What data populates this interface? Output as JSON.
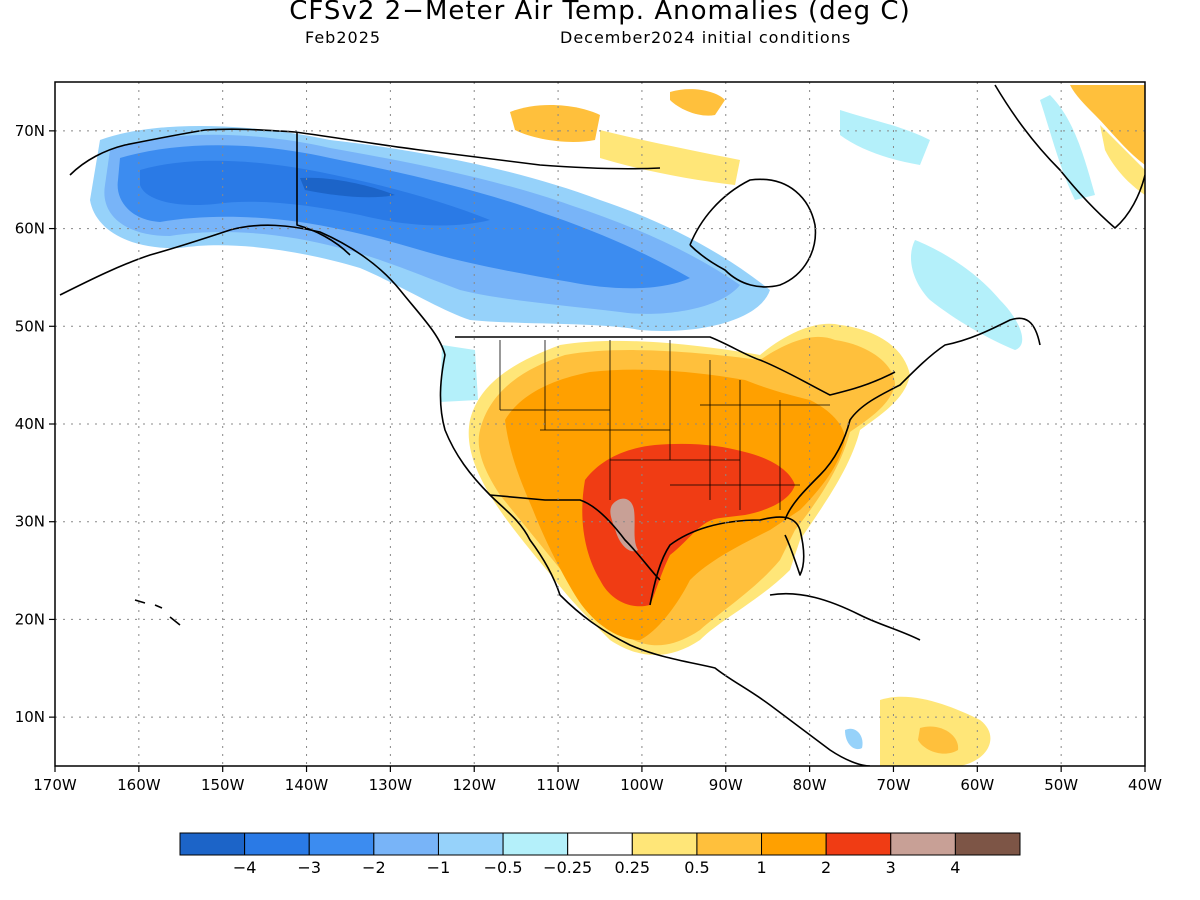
{
  "title": "CFSv2 2−Meter Air Temp. Anomalies (deg C)",
  "valid_month": "Feb2025",
  "initial_conditions": "December2024 initial conditions",
  "map": {
    "lon_labels": [
      "170W",
      "160W",
      "150W",
      "140W",
      "130W",
      "120W",
      "110W",
      "100W",
      "90W",
      "80W",
      "70W",
      "60W",
      "50W",
      "40W"
    ],
    "lat_labels": [
      "70N",
      "60N",
      "50N",
      "40N",
      "30N",
      "20N",
      "10N"
    ],
    "lon_range": [
      -170,
      -40
    ],
    "lat_range": [
      5,
      75
    ]
  },
  "colorbar": {
    "labels": [
      "−4",
      "−3",
      "−2",
      "−1",
      "−0.5",
      "−0.25",
      "0.25",
      "0.5",
      "1",
      "2",
      "3",
      "4"
    ],
    "colors": [
      "#1c64c8",
      "#2a7ae6",
      "#3c8cf0",
      "#78b4f8",
      "#96d2fa",
      "#b4f0fa",
      "#ffffff",
      "#ffe678",
      "#ffc03c",
      "#ffa000",
      "#f03c14",
      "#c8a096",
      "#7d5546"
    ]
  },
  "anomaly_regions": [
    {
      "name": "alaska-west-canada-cold",
      "level": "-2",
      "color": "#3c8cf0"
    },
    {
      "name": "alaska-core-cold",
      "level": "-3",
      "color": "#2a7ae6"
    },
    {
      "name": "southern-plains-warm",
      "level": "3",
      "color": "#f03c14"
    },
    {
      "name": "west-texas-max",
      "level": "4",
      "color": "#c8a096"
    }
  ]
}
